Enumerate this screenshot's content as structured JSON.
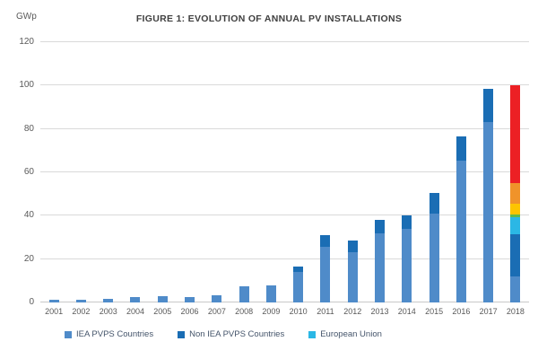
{
  "chart_data": {
    "type": "bar",
    "stacked": true,
    "title": "FIGURE 1: EVOLUTION OF ANNUAL PV INSTALLATIONS",
    "ylabel": "GWp",
    "xlabel": "",
    "ylim": [
      0,
      120
    ],
    "yticks": [
      0,
      20,
      40,
      60,
      80,
      100,
      120
    ],
    "grid": true,
    "legend_position": "bottom",
    "categories": [
      "2001",
      "2002",
      "2003",
      "2004",
      "2005",
      "2006",
      "2007",
      "2008",
      "2009",
      "2010",
      "2011",
      "2012",
      "2013",
      "2014",
      "2015",
      "2016",
      "2017",
      "2018"
    ],
    "series": [
      {
        "name": "IEA PVPS Countries",
        "color": "#4f8bc9",
        "in_legend": true,
        "values": [
          1.2,
          1.2,
          1.8,
          2.5,
          2.9,
          2.3,
          3.5,
          7.5,
          8,
          14,
          25.5,
          23,
          32,
          34,
          41,
          65.5,
          83,
          12
        ]
      },
      {
        "name": "Non IEA PVPS Countries",
        "color": "#1a6db4",
        "in_legend": true,
        "values": [
          0,
          0,
          0,
          0,
          0,
          0,
          0,
          0,
          0,
          2.7,
          5.5,
          5.5,
          6,
          6,
          9.5,
          11,
          15.5,
          19.5
        ]
      },
      {
        "name": "European Union",
        "color": "#2bb7e5",
        "in_legend": true,
        "values": [
          0,
          0,
          0,
          0,
          0,
          0,
          0,
          0,
          0,
          0,
          0,
          0,
          0,
          0,
          0,
          0,
          0,
          8
        ]
      },
      {
        "name": "unlabeled-green-segment",
        "color": "#5fb94a",
        "in_legend": false,
        "values": [
          0,
          0,
          0,
          0,
          0,
          0,
          0,
          0,
          0,
          0,
          0,
          0,
          0,
          0,
          0,
          0,
          0,
          1
        ]
      },
      {
        "name": "unlabeled-yellow-segment",
        "color": "#fdc400",
        "in_legend": false,
        "values": [
          0,
          0,
          0,
          0,
          0,
          0,
          0,
          0,
          0,
          0,
          0,
          0,
          0,
          0,
          0,
          0,
          0,
          5
        ]
      },
      {
        "name": "unlabeled-orange-segment",
        "color": "#f0932a",
        "in_legend": false,
        "values": [
          0,
          0,
          0,
          0,
          0,
          0,
          0,
          0,
          0,
          0,
          0,
          0,
          0,
          0,
          0,
          0,
          0,
          9.5
        ]
      },
      {
        "name": "unlabeled-red-segment",
        "color": "#ec2024",
        "in_legend": false,
        "values": [
          0,
          0,
          0,
          0,
          0,
          0,
          0,
          0,
          0,
          0,
          0,
          0,
          0,
          0,
          0,
          0,
          0,
          45
        ]
      }
    ],
    "totals_by_year": [
      1.2,
      1.2,
      1.8,
      2.5,
      2.9,
      2.3,
      3.5,
      7.5,
      8,
      16.7,
      31,
      28.5,
      38,
      40,
      50.5,
      76.5,
      98.5,
      100
    ]
  }
}
